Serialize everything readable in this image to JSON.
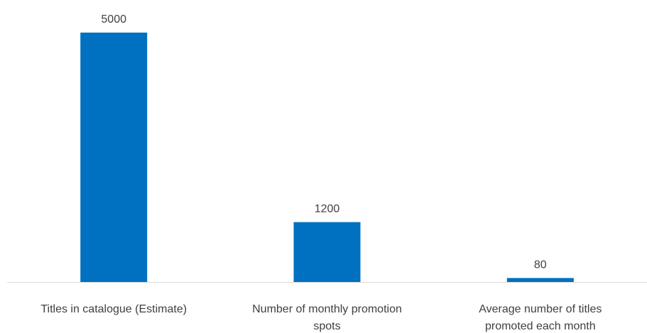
{
  "chart_data": {
    "type": "bar",
    "categories": [
      [
        "Titles in catalogue (Estimate)"
      ],
      [
        "Number of monthly promotion",
        "spots"
      ],
      [
        "Average number of titles",
        "promoted each month"
      ]
    ],
    "values": [
      5000,
      1200,
      80
    ],
    "data_labels": [
      "5000",
      "1200",
      "80"
    ],
    "title": "",
    "xlabel": "",
    "ylabel": "",
    "ylim": [
      0,
      5000
    ],
    "grid": false,
    "legend": "none",
    "bar_color": "#0070C0",
    "axis_color": "#D9D9D9",
    "text_color": "#404040"
  }
}
